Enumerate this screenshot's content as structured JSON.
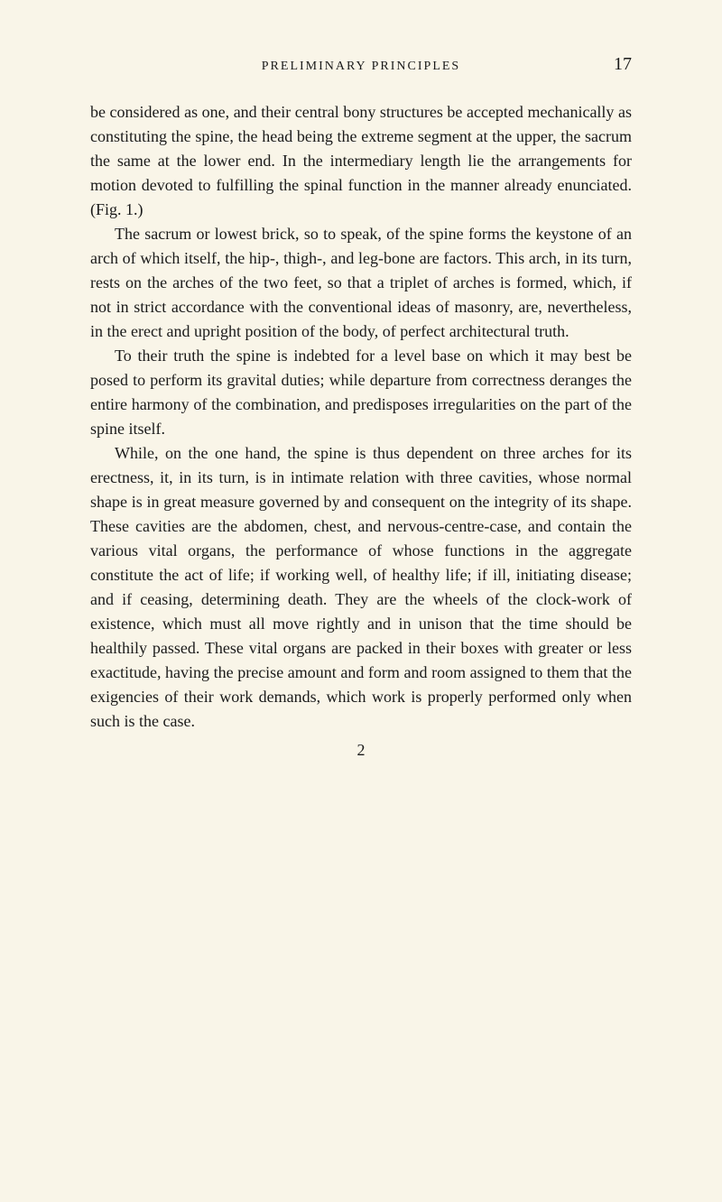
{
  "header": {
    "running_head": "PRELIMINARY PRINCIPLES",
    "page_number": "17"
  },
  "paragraphs": {
    "p1": "be considered as one, and their central bony structures be accepted mechanically as constituting the spine, the head being the extreme segment at the upper, the sacrum the same at the lower end. In the intermediary length lie the arrangements for motion devoted to fulfilling the spinal function in the manner already enunciated. (Fig. 1.)",
    "p2": "The sacrum or lowest brick, so to speak, of the spine forms the keystone of an arch of which itself, the hip-, thigh-, and leg-bone are factors. This arch, in its turn, rests on the arches of the two feet, so that a triplet of arches is formed, which, if not in strict accordance with the conventional ideas of masonry, are, nevertheless, in the erect and upright position of the body, of perfect architectural truth.",
    "p3": "To their truth the spine is indebted for a level base on which it may best be posed to perform its gravital duties; while departure from correctness deranges the entire harmony of the combination, and predisposes irregularities on the part of the spine itself.",
    "p4": "While, on the one hand, the spine is thus dependent on three arches for its erectness, it, in its turn, is in intimate relation with three cavities, whose normal shape is in great measure governed by and consequent on the integrity of its shape. These cavities are the abdomen, chest, and nervous-centre-case, and contain the various vital organs, the performance of whose functions in the aggregate constitute the act of life; if working well, of healthy life; if ill, initiating disease; and if ceasing, determining death. They are the wheels of the clock-work of existence, which must all move rightly and in unison that the time should be healthily passed. These vital organs are packed in their boxes with greater or less exactitude, having the precise amount and form and room assigned to them that the exigencies of their work demands, which work is properly performed only when such is the case."
  },
  "footer": {
    "signature_number": "2"
  },
  "styling": {
    "background_color": "#f9f5e8",
    "text_color": "#1a1a1a",
    "body_font_size": 18,
    "header_font_size": 14,
    "page_number_font_size": 20,
    "line_height": 1.5,
    "font_family": "Georgia, Times New Roman, serif"
  }
}
